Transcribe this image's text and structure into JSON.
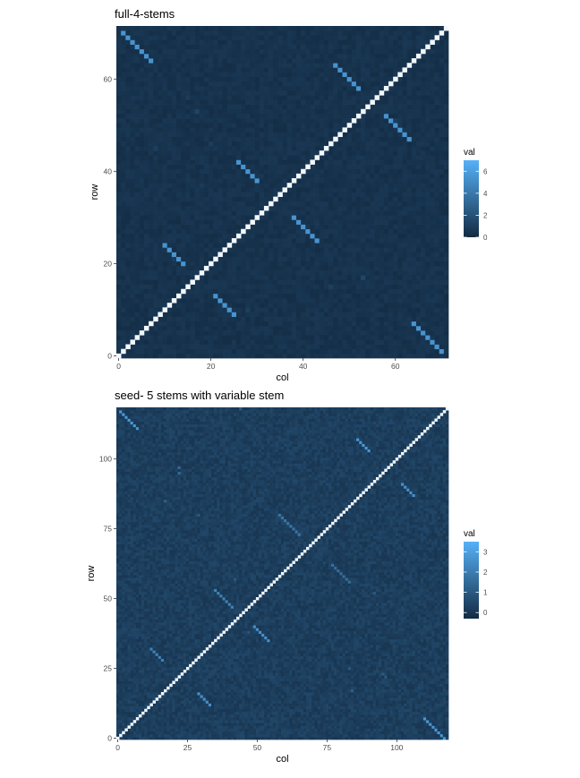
{
  "chart_data": [
    {
      "type": "heatmap",
      "title": "full-4-stems",
      "xlabel": "col",
      "ylabel": "row",
      "n": 72,
      "xlim": [
        -0.5,
        71.5
      ],
      "ylim": [
        -0.5,
        71.5
      ],
      "x_ticks": [
        0,
        20,
        40,
        60
      ],
      "y_ticks": [
        0,
        20,
        40,
        60
      ],
      "grid": true,
      "legend": {
        "title": "val",
        "placement": "right",
        "range": [
          0,
          7
        ],
        "ticks": [
          0,
          2,
          4,
          6
        ],
        "low_color": "#132b43",
        "high_color": "#56b1f7"
      },
      "diagonal_value": 7,
      "background_value": 0.4,
      "stems": [
        {
          "row_start": 70,
          "col_start": 1,
          "length": 7,
          "value": 5.5
        },
        {
          "row_start": 63,
          "col_start": 47,
          "length": 6,
          "value": 5.5
        },
        {
          "row_start": 52,
          "col_start": 58,
          "length": 6,
          "value": 5.5
        },
        {
          "row_start": 42,
          "col_start": 26,
          "length": 5,
          "value": 5.5
        },
        {
          "row_start": 30,
          "col_start": 38,
          "length": 6,
          "value": 5.5
        },
        {
          "row_start": 24,
          "col_start": 10,
          "length": 5,
          "value": 5.5
        },
        {
          "row_start": 13,
          "col_start": 21,
          "length": 5,
          "value": 5.5
        },
        {
          "row_start": 7,
          "col_start": 64,
          "length": 7,
          "value": 5.5
        }
      ],
      "faint_cells": [
        {
          "row": 53,
          "col": 17,
          "value": 1.3
        },
        {
          "row": 45,
          "col": 8,
          "value": 1.0
        },
        {
          "row": 51,
          "col": 60,
          "value": 1.0
        },
        {
          "row": 17,
          "col": 53,
          "value": 1.4
        },
        {
          "row": 15,
          "col": 46,
          "value": 1.0
        },
        {
          "row": 10,
          "col": 28,
          "value": 1.0
        },
        {
          "row": 21,
          "col": 12,
          "value": 0.9
        },
        {
          "row": 56,
          "col": 15,
          "value": 0.9
        },
        {
          "row": 46,
          "col": 20,
          "value": 0.9
        },
        {
          "row": 37,
          "col": 18,
          "value": 0.8
        }
      ]
    },
    {
      "type": "heatmap",
      "title": "seed- 5 stems with variable stem",
      "xlabel": "col",
      "ylabel": "row",
      "n": 119,
      "xlim": [
        -0.5,
        118.5
      ],
      "ylim": [
        -0.5,
        118.5
      ],
      "x_ticks": [
        0,
        25,
        50,
        75,
        100
      ],
      "y_ticks": [
        0,
        25,
        50,
        75,
        100
      ],
      "grid": true,
      "legend": {
        "title": "val",
        "placement": "right",
        "range": [
          -0.3,
          3.5
        ],
        "ticks": [
          0,
          1,
          2,
          3
        ],
        "low_color": "#132b43",
        "high_color": "#56b1f7"
      },
      "diagonal_value": 3.5,
      "background_value": 0.25,
      "stems": [
        {
          "row_start": 117,
          "col_start": 1,
          "length": 7,
          "value": 2.8
        },
        {
          "row_start": 107,
          "col_start": 86,
          "length": 5,
          "value": 2.8
        },
        {
          "row_start": 91,
          "col_start": 102,
          "length": 5,
          "value": 2.6
        },
        {
          "row_start": 80,
          "col_start": 58,
          "length": 8,
          "value": 1.8
        },
        {
          "row_start": 62,
          "col_start": 77,
          "length": 7,
          "value": 1.6
        },
        {
          "row_start": 53,
          "col_start": 35,
          "length": 7,
          "value": 2.2
        },
        {
          "row_start": 40,
          "col_start": 49,
          "length": 6,
          "value": 2.6
        },
        {
          "row_start": 32,
          "col_start": 12,
          "length": 5,
          "value": 2.2
        },
        {
          "row_start": 16,
          "col_start": 29,
          "length": 5,
          "value": 2.6
        },
        {
          "row_start": 7,
          "col_start": 110,
          "length": 9,
          "value": 2.8
        }
      ],
      "faint_cells": [
        {
          "row": 97,
          "col": 22,
          "value": 1.5
        },
        {
          "row": 95,
          "col": 22,
          "value": 1.5
        },
        {
          "row": 85,
          "col": 17,
          "value": 1.2
        },
        {
          "row": 80,
          "col": 29,
          "value": 1.0
        },
        {
          "row": 57,
          "col": 42,
          "value": 1.0
        },
        {
          "row": 52,
          "col": 92,
          "value": 1.0
        },
        {
          "row": 23,
          "col": 95,
          "value": 1.0
        },
        {
          "row": 22,
          "col": 96,
          "value": 1.0
        },
        {
          "row": 17,
          "col": 84,
          "value": 1.2
        },
        {
          "row": 118,
          "col": 44,
          "value": 1.1
        },
        {
          "row": 25,
          "col": 83,
          "value": 1.0
        },
        {
          "row": 38,
          "col": 47,
          "value": 0.9
        }
      ]
    }
  ]
}
